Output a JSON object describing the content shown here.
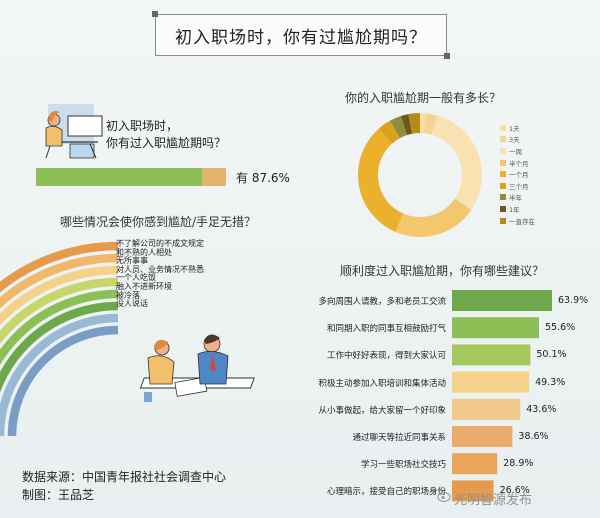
{
  "title": "初入职场时，你有过尴尬期吗？",
  "q1": {
    "text_line1": "初入职场时，",
    "text_line2": "你有过入职尴尬期吗？",
    "label": "有 87.6%"
  },
  "q2_title": "你的入职尴尬期一般有多长？",
  "q3_title": "哪些情况会使你感到尴尬/手足无措？",
  "q4_title": "顺利度过入职尴尬期，你有哪些建议？",
  "footer": {
    "source": "数据来源：中国青年报社社会调查中心",
    "maker": "制图：王品芝"
  },
  "watermark": "光明智源发布",
  "colors": {
    "green": "#8cbf56",
    "orange": "#e3b56c",
    "bar_green_dark": "#6fa84a",
    "bar_green_light": "#a6c95f",
    "bar_orange": "#f0c98b",
    "bar_orange_dark": "#e69a4b"
  },
  "chart_data": [
    {
      "type": "bar",
      "id": "had-awkward-period",
      "categories": [
        "有"
      ],
      "values": [
        87.6
      ],
      "unit": "%"
    },
    {
      "type": "pie",
      "id": "duration",
      "title": "你的入职尴尬期一般有多长？",
      "categories": [
        "1天",
        "3天",
        "一周",
        "半个月",
        "一个月",
        "三个月",
        "半年",
        "1年",
        "一直存在"
      ],
      "colors": [
        "#f6dfa6",
        "#f5d492",
        "#f8e2b2",
        "#f2c76e",
        "#ebb02c",
        "#d9a21d",
        "#8e8e3a",
        "#6a5a1e",
        "#b98a1a"
      ],
      "values": [
        1.5,
        3.0,
        30.0,
        22.0,
        32.0,
        3.5,
        3.0,
        2.0,
        3.0
      ],
      "legend_position": "right"
    },
    {
      "type": "bar",
      "id": "awkward-situations",
      "title": "哪些情况会使你感到尴尬/手足无措？",
      "categories": [
        "不了解公司的不成文规定",
        "和不熟的人相处",
        "无所事事",
        "对人员、业务情况不熟悉",
        "一个人吃饭",
        "融入不进新环境",
        "被冷落",
        "没人说话"
      ],
      "colors": [
        "#e69a4b",
        "#efb86a",
        "#f4d28a",
        "#c6d66a",
        "#8cbf56",
        "#6fa84a",
        "#9ab9d4",
        "#7b9cc4"
      ]
    },
    {
      "type": "bar",
      "id": "suggestions",
      "title": "顺利度过入职尴尬期，你有哪些建议？",
      "categories": [
        "多向周围人请教，多和老员工交流",
        "和同期入职的同事互相鼓励打气",
        "工作中好好表现，得到大家认可",
        "积极主动参加入职培训和集体活动",
        "从小事做起，给大家留一个好印象",
        "通过聊天等拉近同事关系",
        "学习一些职场社交技巧",
        "心理暗示，接受自己的职场身份"
      ],
      "values": [
        63.9,
        55.6,
        50.1,
        49.3,
        43.6,
        38.6,
        28.9,
        26.6
      ],
      "value_labels": [
        "63.9%",
        "55.6%",
        "50.1%",
        "49.3%",
        "43.6%",
        "38.6%",
        "28.9%",
        "26.6%"
      ],
      "colors": [
        "#6fa84a",
        "#8cbf56",
        "#a6c95f",
        "#f4d28a",
        "#f0c98b",
        "#ebab6a",
        "#e9a55c",
        "#e69a4b"
      ]
    }
  ]
}
